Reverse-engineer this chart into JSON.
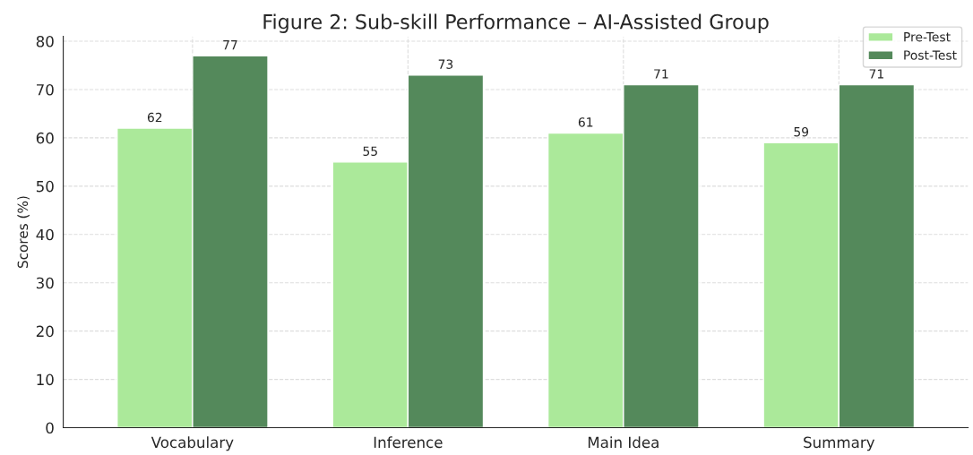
{
  "chart_data": {
    "type": "bar",
    "title": "Figure 2: Sub-skill Performance – AI-Assisted Group",
    "ylabel": "Scores (%)",
    "categories": [
      "Vocabulary",
      "Inference",
      "Main Idea",
      "Summary"
    ],
    "series": [
      {
        "name": "Pre-Test",
        "color": "#abe99a",
        "values": [
          62,
          55,
          61,
          59
        ]
      },
      {
        "name": "Post-Test",
        "color": "#54895b",
        "values": [
          77,
          73,
          71,
          71
        ]
      }
    ],
    "ylim": [
      0,
      81
    ],
    "yticks": [
      0,
      10,
      20,
      30,
      40,
      50,
      60,
      70,
      80
    ],
    "grid": true,
    "legend": "top right",
    "data_labels": true
  }
}
